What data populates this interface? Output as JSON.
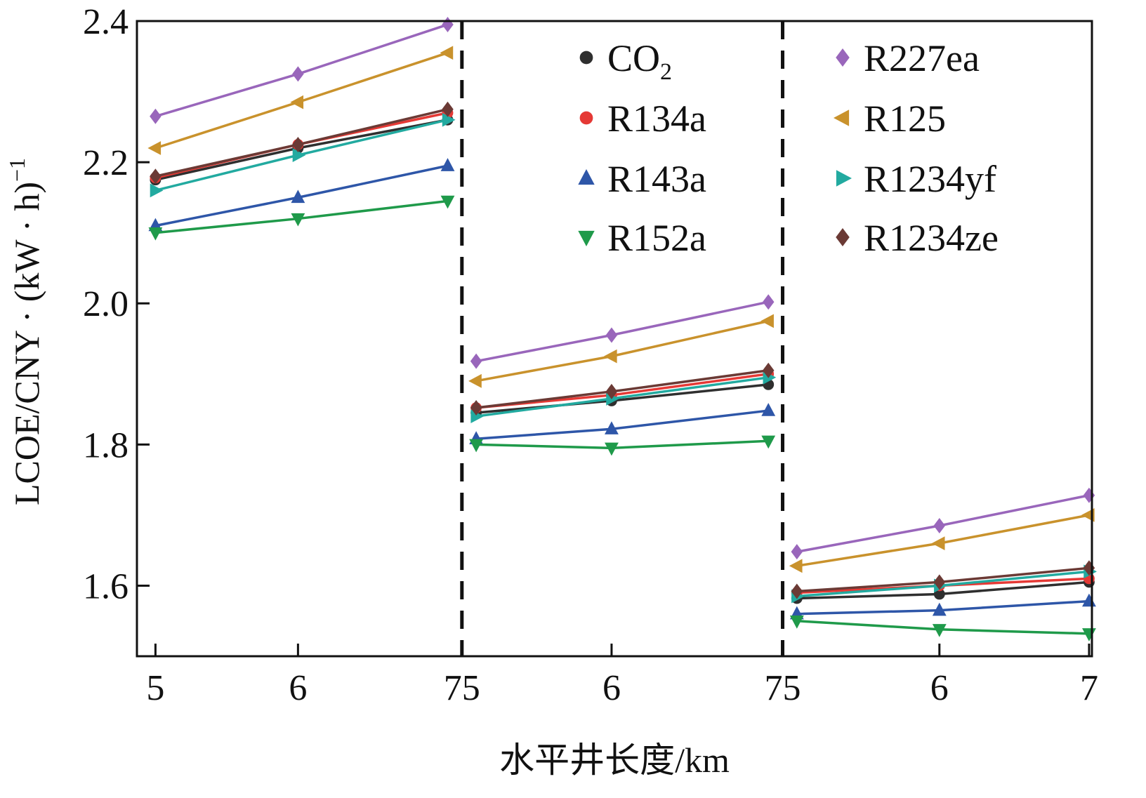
{
  "chart_data": {
    "type": "line",
    "title": "",
    "xlabel": "水平井长度/km",
    "ylabel": "LCOE/CNY · (kW · h)",
    "ylabel_sup": "−1",
    "ylim": [
      1.5,
      2.4
    ],
    "yticks": [
      {
        "value": 1.6,
        "label": "1.6"
      },
      {
        "value": 1.8,
        "label": "1.8"
      },
      {
        "value": 2.0,
        "label": "2.0"
      },
      {
        "value": 2.2,
        "label": "2.2"
      },
      {
        "value": 2.4,
        "label": "2.4"
      }
    ],
    "xlim": [
      -0.13,
      6.57
    ],
    "xticks": [
      {
        "pos": 0,
        "label": "5"
      },
      {
        "pos": 1,
        "label": "6"
      },
      {
        "pos": 2.15,
        "label": "75"
      },
      {
        "pos": 3.2,
        "label": "6"
      },
      {
        "pos": 4.4,
        "label": "75"
      },
      {
        "pos": 5.5,
        "label": "6"
      },
      {
        "pos": 6.55,
        "label": "7"
      }
    ],
    "separators": [
      2.15,
      4.4
    ],
    "group_x": [
      [
        0,
        1,
        2.05
      ],
      [
        2.25,
        3.2,
        4.3
      ],
      [
        4.5,
        5.5,
        6.55
      ]
    ],
    "legend_columns": 2,
    "series": [
      {
        "name": "CO",
        "sub": "2",
        "color": "#2f2f2f",
        "marker": "circle",
        "groups": [
          [
            2.175,
            2.22,
            2.26
          ],
          [
            1.845,
            1.862,
            1.885
          ],
          [
            1.582,
            1.588,
            1.605
          ]
        ]
      },
      {
        "name": "R134a",
        "color": "#e53935",
        "marker": "circle",
        "groups": [
          [
            2.178,
            2.225,
            2.27
          ],
          [
            1.852,
            1.87,
            1.9
          ],
          [
            1.59,
            1.6,
            1.61
          ]
        ]
      },
      {
        "name": "R143a",
        "color": "#2e56a8",
        "marker": "triangle",
        "groups": [
          [
            2.11,
            2.15,
            2.195
          ],
          [
            1.808,
            1.822,
            1.848
          ],
          [
            1.56,
            1.565,
            1.578
          ]
        ]
      },
      {
        "name": "R152a",
        "color": "#1f9a4a",
        "marker": "triangle-down",
        "groups": [
          [
            2.1,
            2.12,
            2.145
          ],
          [
            1.8,
            1.795,
            1.805
          ],
          [
            1.55,
            1.538,
            1.532
          ]
        ]
      },
      {
        "name": "R227ea",
        "color": "#9966bb",
        "marker": "diamond",
        "groups": [
          [
            2.265,
            2.325,
            2.395
          ],
          [
            1.918,
            1.955,
            2.002
          ],
          [
            1.648,
            1.685,
            1.728
          ]
        ]
      },
      {
        "name": "R125",
        "color": "#c9922c",
        "marker": "triangle-left",
        "groups": [
          [
            2.22,
            2.285,
            2.355
          ],
          [
            1.89,
            1.925,
            1.975
          ],
          [
            1.628,
            1.66,
            1.7
          ]
        ]
      },
      {
        "name": "R1234yf",
        "color": "#22aaa0",
        "marker": "triangle-right",
        "groups": [
          [
            2.16,
            2.21,
            2.26
          ],
          [
            1.84,
            1.865,
            1.895
          ],
          [
            1.585,
            1.6,
            1.62
          ]
        ]
      },
      {
        "name": "R1234ze",
        "color": "#6b3a35",
        "marker": "diamond",
        "groups": [
          [
            2.18,
            2.225,
            2.275
          ],
          [
            1.852,
            1.875,
            1.905
          ],
          [
            1.592,
            1.605,
            1.625
          ]
        ]
      }
    ]
  }
}
